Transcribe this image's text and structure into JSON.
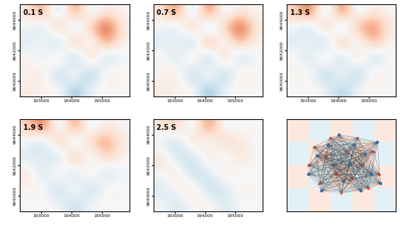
{
  "chart_data": [
    {
      "type": "heatmap",
      "title": "0.1 S",
      "xlim": [
        192300,
        195900
      ],
      "ylim": [
        9639000,
        9645000
      ],
      "xticks": [
        193000,
        194000,
        195000
      ],
      "yticks": [
        9640000,
        9642000,
        9644000
      ],
      "color_range": [
        -1,
        1
      ],
      "cells": [
        [
          0.1,
          0.5,
          -0.4,
          0.6,
          -0.2,
          0.1,
          0.0
        ],
        [
          0.0,
          -0.3,
          0.5,
          -0.4,
          0.3,
          0.8,
          0.1
        ],
        [
          -0.2,
          0.1,
          -0.5,
          0.6,
          -0.3,
          0.5,
          0.0
        ],
        [
          0.1,
          -0.2,
          0.4,
          -0.6,
          0.5,
          -0.4,
          0.0
        ],
        [
          0.0,
          0.2,
          -0.5,
          0.3,
          -0.6,
          0.2,
          0.0
        ],
        [
          0.1,
          0.0,
          0.1,
          -0.5,
          0.0,
          0.0,
          0.0
        ]
      ]
    },
    {
      "type": "heatmap",
      "title": "0.7 S",
      "xlim": [
        192300,
        195900
      ],
      "ylim": [
        9639000,
        9645000
      ],
      "xticks": [
        193000,
        194000,
        195000
      ],
      "yticks": [
        9640000,
        9642000,
        9644000
      ],
      "color_range": [
        -1,
        1
      ],
      "cells": [
        [
          0.1,
          0.6,
          -0.4,
          0.7,
          -0.2,
          0.1,
          0.0
        ],
        [
          0.0,
          -0.3,
          0.5,
          -0.5,
          0.3,
          0.8,
          0.1
        ],
        [
          -0.2,
          0.1,
          -0.5,
          0.7,
          -0.3,
          0.4,
          0.0
        ],
        [
          0.1,
          -0.3,
          0.4,
          -0.6,
          0.5,
          -0.4,
          0.0
        ],
        [
          0.0,
          0.2,
          -0.5,
          0.3,
          -0.5,
          0.2,
          0.0
        ],
        [
          0.1,
          0.0,
          0.1,
          -0.5,
          0.0,
          0.0,
          0.0
        ]
      ]
    },
    {
      "type": "heatmap",
      "title": "1.3 S",
      "xlim": [
        192300,
        195900
      ],
      "ylim": [
        9639000,
        9645000
      ],
      "xticks": [
        193000,
        194000,
        195000
      ],
      "yticks": [
        9640000,
        9642000,
        9644000
      ],
      "color_range": [
        -1,
        1
      ],
      "cells": [
        [
          0.2,
          0.7,
          -0.4,
          0.7,
          -0.2,
          0.1,
          0.0
        ],
        [
          0.0,
          -0.4,
          0.5,
          -0.5,
          0.4,
          0.6,
          0.1
        ],
        [
          -0.2,
          0.1,
          -0.5,
          0.6,
          -0.3,
          0.4,
          0.0
        ],
        [
          0.1,
          -0.3,
          0.4,
          -0.5,
          0.4,
          -0.4,
          0.0
        ],
        [
          0.0,
          0.1,
          -0.5,
          0.2,
          -0.5,
          0.2,
          0.0
        ],
        [
          0.0,
          0.0,
          0.0,
          -0.4,
          0.0,
          0.0,
          0.0
        ]
      ]
    },
    {
      "type": "heatmap",
      "title": "1.9 S",
      "xlim": [
        192300,
        195900
      ],
      "ylim": [
        9639000,
        9645000
      ],
      "xticks": [
        193000,
        194000,
        195000
      ],
      "yticks": [
        9640000,
        9642000,
        9644000
      ],
      "color_range": [
        -1,
        1
      ],
      "cells": [
        [
          0.2,
          0.7,
          -0.3,
          0.6,
          -0.2,
          0.1,
          0.0
        ],
        [
          0.0,
          -0.4,
          0.5,
          -0.4,
          0.3,
          0.5,
          0.1
        ],
        [
          -0.2,
          0.0,
          -0.4,
          0.6,
          -0.3,
          0.3,
          0.0
        ],
        [
          0.2,
          -0.3,
          0.3,
          -0.4,
          0.3,
          -0.3,
          0.0
        ],
        [
          0.0,
          0.1,
          -0.4,
          0.2,
          -0.4,
          0.1,
          0.0
        ],
        [
          0.0,
          0.0,
          0.0,
          -0.3,
          0.0,
          0.0,
          0.0
        ]
      ]
    },
    {
      "type": "heatmap",
      "title": "2.5 S",
      "xlim": [
        192300,
        195900
      ],
      "ylim": [
        9639000,
        9645000
      ],
      "xticks": [
        193000,
        194000,
        195000
      ],
      "yticks": [
        9640000,
        9642000,
        9644000
      ],
      "color_range": [
        -1,
        1
      ],
      "cells": [
        [
          0.1,
          0.3,
          -0.2,
          0.6,
          -0.1,
          0.0,
          0.0
        ],
        [
          -0.1,
          -0.3,
          0.3,
          -0.2,
          0.3,
          0.1,
          0.0
        ],
        [
          0.2,
          -0.2,
          -0.3,
          0.3,
          -0.2,
          0.2,
          0.0
        ],
        [
          0.0,
          0.2,
          -0.3,
          -0.2,
          0.2,
          -0.1,
          0.0
        ],
        [
          -0.2,
          0.0,
          0.2,
          -0.3,
          -0.2,
          0.1,
          0.0
        ],
        [
          0.0,
          -0.2,
          0.0,
          0.1,
          -0.2,
          0.0,
          0.0
        ]
      ]
    },
    {
      "type": "network",
      "tick_labels": false,
      "xlim": [
        0,
        10
      ],
      "ylim": [
        0,
        10
      ],
      "color_range": [
        -1,
        1
      ],
      "cells": [
        [
          0.3,
          -0.3,
          0.3,
          -0.3,
          0.3
        ],
        [
          -0.3,
          0.3,
          -0.3,
          0.3,
          -0.3
        ],
        [
          0.3,
          -0.3,
          0.3,
          -0.3,
          0.3
        ],
        [
          -0.3,
          0.3,
          -0.3,
          0.3,
          -0.3
        ]
      ],
      "series": [
        {
          "color": "#d9462b",
          "marker": "triangle",
          "points": [
            [
              2,
              5
            ],
            [
              2.5,
              7
            ],
            [
              3,
              3
            ],
            [
              3.5,
              6
            ],
            [
              4,
              8
            ],
            [
              4.5,
              4
            ],
            [
              5,
              2
            ],
            [
              5.5,
              6.5
            ],
            [
              6,
              3.5
            ],
            [
              6.5,
              8
            ],
            [
              7,
              5
            ],
            [
              7.5,
              2.5
            ],
            [
              8,
              6.5
            ],
            [
              8.5,
              4
            ]
          ]
        },
        {
          "color": "#2b6cb0",
          "marker": "circle",
          "points": [
            [
              2,
              4
            ],
            [
              2.8,
              6
            ],
            [
              3.2,
              2.2
            ],
            [
              3.8,
              7.2
            ],
            [
              4.2,
              5
            ],
            [
              4.8,
              8.3
            ],
            [
              5.2,
              3.2
            ],
            [
              5.8,
              5.2
            ],
            [
              6.2,
              7.2
            ],
            [
              6.8,
              2.2
            ],
            [
              7.2,
              6.2
            ],
            [
              7.8,
              4
            ],
            [
              8.3,
              7.5
            ],
            [
              8.6,
              3
            ]
          ]
        }
      ]
    }
  ]
}
